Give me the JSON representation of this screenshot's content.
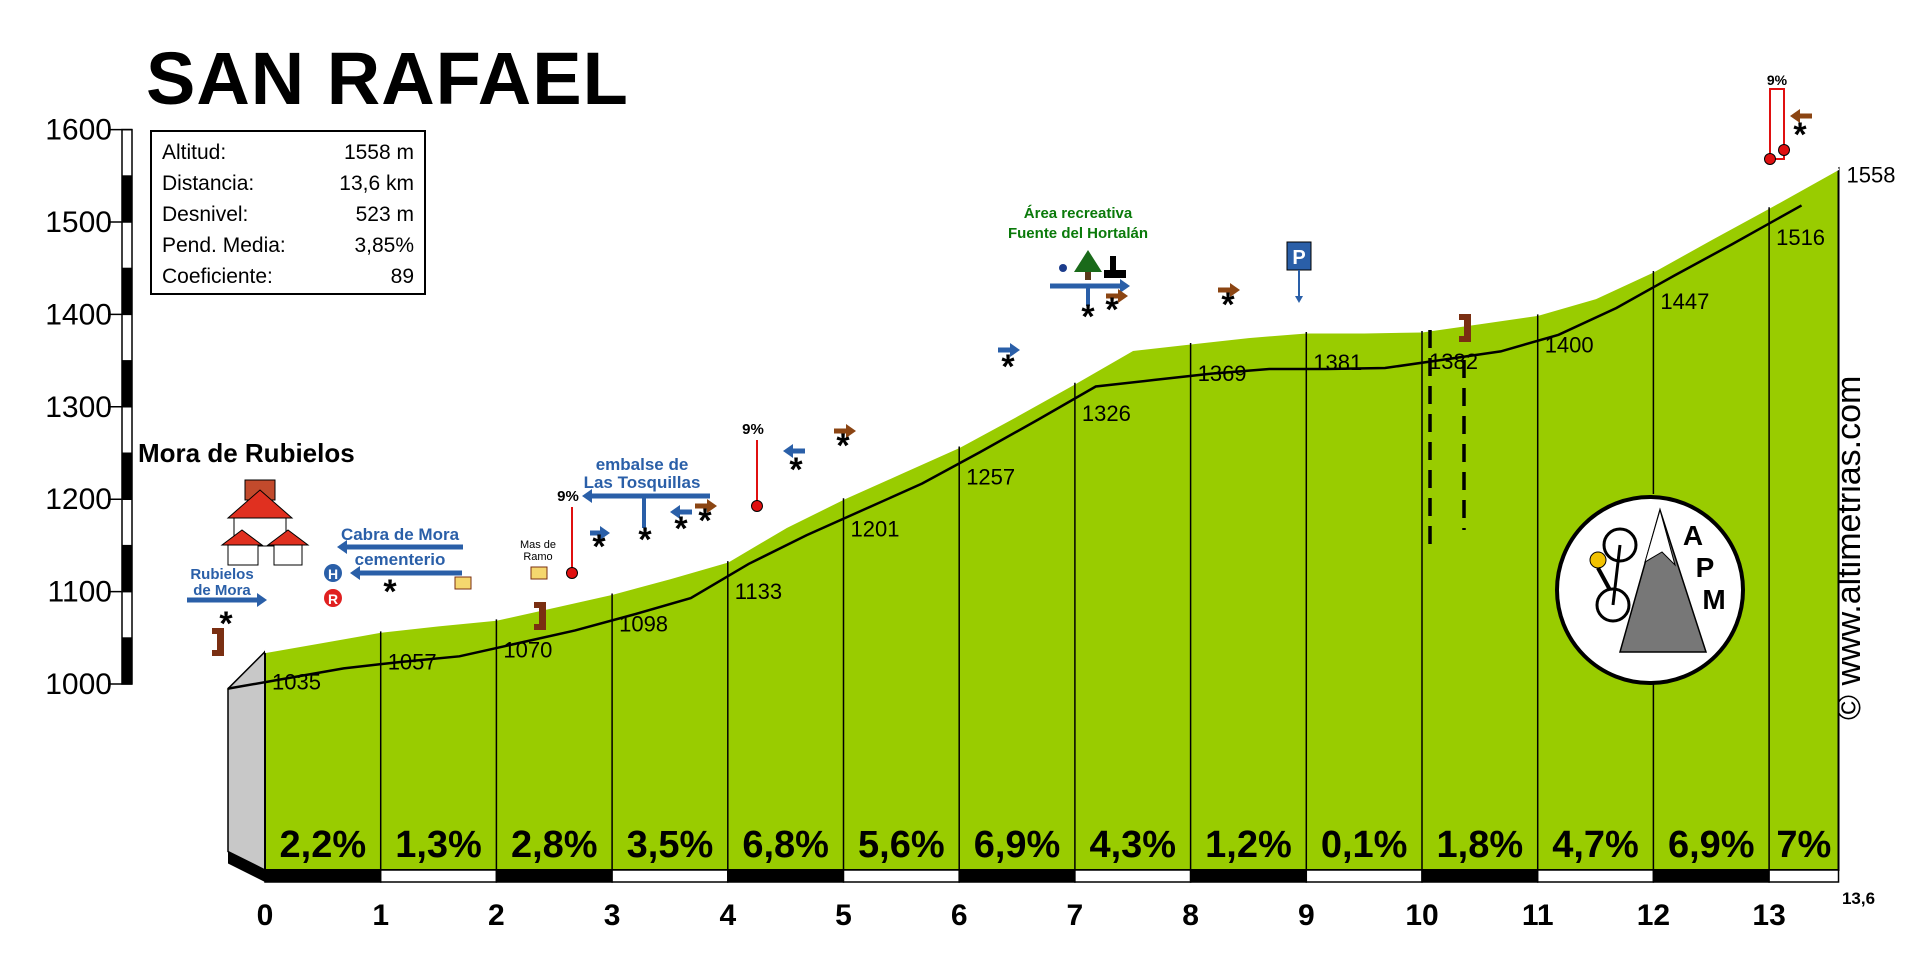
{
  "title": "SAN RAFAEL",
  "stats": [
    {
      "label": "Altitud:",
      "value": "1558 m"
    },
    {
      "label": "Distancia:",
      "value": "13,6 km"
    },
    {
      "label": "Desnivel:",
      "value": "523 m"
    },
    {
      "label": "Pend. Media:",
      "value": "3,85%"
    },
    {
      "label": "Coeficiente:",
      "value": "89"
    }
  ],
  "town_label": "Mora de Rubielos",
  "copyright": "© www.altimetrias.com",
  "logo_text": "APM",
  "annotations": {
    "rubielos": [
      "Rubielos",
      "de Mora"
    ],
    "cabra": [
      "Cabra de Mora",
      "cementerio"
    ],
    "mas_ramo": [
      "Mas de",
      "Ramo"
    ],
    "embalse": [
      "embalse de",
      "Las Tosquillas"
    ],
    "area": [
      "Área recreativa",
      "Fuente del Hortalán"
    ],
    "parking": "P",
    "hotel": "H",
    "restaurant": "R",
    "steep_labels": [
      "9%",
      "9%",
      "9%"
    ]
  },
  "chart_data": {
    "type": "area",
    "xlabel": "",
    "ylabel": "",
    "xlim": [
      0,
      13.6
    ],
    "ylim": [
      1000,
      1600
    ],
    "y_ticks": [
      1000,
      1100,
      1200,
      1300,
      1400,
      1500,
      1600
    ],
    "x_ticks": [
      0,
      1,
      2,
      3,
      4,
      5,
      6,
      7,
      8,
      9,
      10,
      11,
      12,
      13
    ],
    "x_end_label": "13,6",
    "altitudes": [
      {
        "x": 0,
        "label": "1035"
      },
      {
        "x": 1,
        "label": "1057"
      },
      {
        "x": 2,
        "label": "1070"
      },
      {
        "x": 3,
        "label": "1098"
      },
      {
        "x": 4,
        "label": "1133"
      },
      {
        "x": 5,
        "label": "1201"
      },
      {
        "x": 6,
        "label": "1257"
      },
      {
        "x": 7,
        "label": "1326"
      },
      {
        "x": 8,
        "label": "1369"
      },
      {
        "x": 9,
        "label": "1381"
      },
      {
        "x": 10,
        "label": "1382"
      },
      {
        "x": 11,
        "label": "1400"
      },
      {
        "x": 12,
        "label": "1447"
      },
      {
        "x": 13,
        "label": "1516"
      },
      {
        "x": 13.6,
        "label": "1558"
      }
    ],
    "gradients": [
      "2,2%",
      "1,3%",
      "2,8%",
      "3,5%",
      "6,8%",
      "5,6%",
      "6,9%",
      "4,3%",
      "1,2%",
      "0,1%",
      "1,8%",
      "4,7%",
      "6,9%",
      "7%"
    ],
    "profile": [
      {
        "x": 0,
        "y": 1035
      },
      {
        "x": 0.5,
        "y": 1046
      },
      {
        "x": 1,
        "y": 1057
      },
      {
        "x": 1.5,
        "y": 1064
      },
      {
        "x": 2,
        "y": 1070
      },
      {
        "x": 2.5,
        "y": 1084
      },
      {
        "x": 3,
        "y": 1098
      },
      {
        "x": 3.5,
        "y": 1115
      },
      {
        "x": 4,
        "y": 1133
      },
      {
        "x": 4.5,
        "y": 1170
      },
      {
        "x": 5,
        "y": 1201
      },
      {
        "x": 5.5,
        "y": 1229
      },
      {
        "x": 6,
        "y": 1257
      },
      {
        "x": 6.5,
        "y": 1291
      },
      {
        "x": 7,
        "y": 1326
      },
      {
        "x": 7.5,
        "y": 1362
      },
      {
        "x": 8,
        "y": 1369
      },
      {
        "x": 8.5,
        "y": 1376
      },
      {
        "x": 9,
        "y": 1381
      },
      {
        "x": 9.5,
        "y": 1381
      },
      {
        "x": 10,
        "y": 1382
      },
      {
        "x": 10.5,
        "y": 1391
      },
      {
        "x": 11,
        "y": 1400
      },
      {
        "x": 11.5,
        "y": 1418
      },
      {
        "x": 12,
        "y": 1447
      },
      {
        "x": 12.5,
        "y": 1482
      },
      {
        "x": 13,
        "y": 1516
      },
      {
        "x": 13.6,
        "y": 1558
      }
    ],
    "colors": {
      "fill": "#99cc00",
      "road_yellow": "#ffee22",
      "road_grey": "#e6e6e6",
      "band_olive": "#c9c25a",
      "arrow_blue": "#2a5fa8",
      "arrow_brown": "#8b4513",
      "label_green": "#0a7a0a",
      "steep_red": "#e01010"
    }
  }
}
